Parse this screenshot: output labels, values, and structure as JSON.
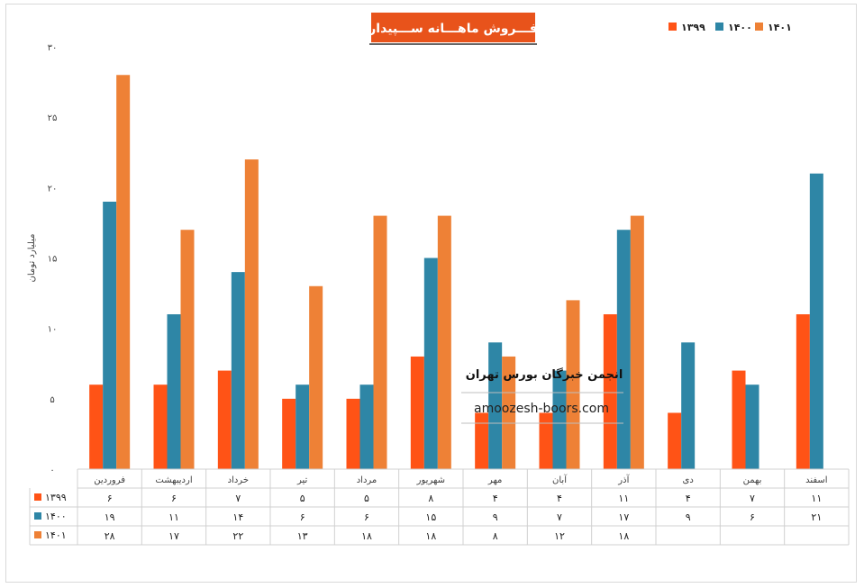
{
  "chart_data": {
    "type": "bar",
    "title": "فـــروش ماهـــانه ســـپیدار",
    "ylabel": "میلیارد تومان",
    "ylim": [
      0,
      30
    ],
    "yticks": [
      "۰",
      "۵",
      "۱۰",
      "۱۵",
      "۲۰",
      "۲۵",
      "۳۰"
    ],
    "categories": [
      "فروردین",
      "اردیبهشت",
      "خرداد",
      "تیر",
      "مرداد",
      "شهریور",
      "مهر",
      "آبان",
      "آذر",
      "دی",
      "بهمن",
      "اسفند"
    ],
    "series": [
      {
        "name": "۱۳۹۹",
        "color": "#FF5316",
        "values": [
          6,
          6,
          7,
          5,
          5,
          8,
          4,
          4,
          11,
          4,
          7,
          11
        ],
        "labels": [
          "۶",
          "۶",
          "۷",
          "۵",
          "۵",
          "۸",
          "۴",
          "۴",
          "۱۱",
          "۴",
          "۷",
          "۱۱"
        ]
      },
      {
        "name": "۱۴۰۰",
        "color": "#2E86A6",
        "values": [
          19,
          11,
          14,
          6,
          6,
          15,
          9,
          7,
          17,
          9,
          6,
          21
        ],
        "labels": [
          "۱۹",
          "۱۱",
          "۱۴",
          "۶",
          "۶",
          "۱۵",
          "۹",
          "۷",
          "۱۷",
          "۹",
          "۶",
          "۲۱"
        ]
      },
      {
        "name": "۱۴۰۱",
        "color": "#EE8136",
        "values": [
          28,
          17,
          22,
          13,
          18,
          18,
          8,
          12,
          18,
          null,
          null,
          null
        ],
        "labels": [
          "۲۸",
          "۱۷",
          "۲۲",
          "۱۳",
          "۱۸",
          "۱۸",
          "۸",
          "۱۲",
          "۱۸",
          "",
          "",
          ""
        ]
      }
    ],
    "legend_position": "top-right",
    "grid": false
  },
  "watermark": {
    "org": "انجمن خبرگان بورس تهران",
    "site": "amoozesh-boors.com"
  },
  "colors": {
    "title_bg": "#E8531B",
    "title_text": "#ffffff"
  }
}
